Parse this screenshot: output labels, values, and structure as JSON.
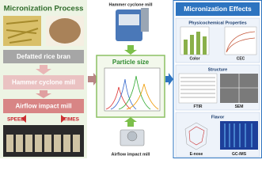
{
  "left": {
    "title": "Micronization Process",
    "steps": [
      "Defatted rice bran",
      "Hammer cyclone mill",
      "Airflow impact mill"
    ],
    "labels": [
      "SPEED",
      "TIMES"
    ]
  },
  "center": {
    "top_label": "Hammer cyclone mill",
    "title": "Particle size",
    "bottom_label": "Airflow impact mill"
  },
  "right": {
    "title": "Micronization Effects",
    "sections": [
      {
        "title": "Physicochemical Properties",
        "labels": [
          "Color",
          "CEC"
        ]
      },
      {
        "title": "Structure",
        "labels": [
          "FTIR",
          "SEM"
        ]
      },
      {
        "title": "Flavor",
        "labels": [
          "E-nose",
          "GC-IMS"
        ]
      }
    ]
  }
}
